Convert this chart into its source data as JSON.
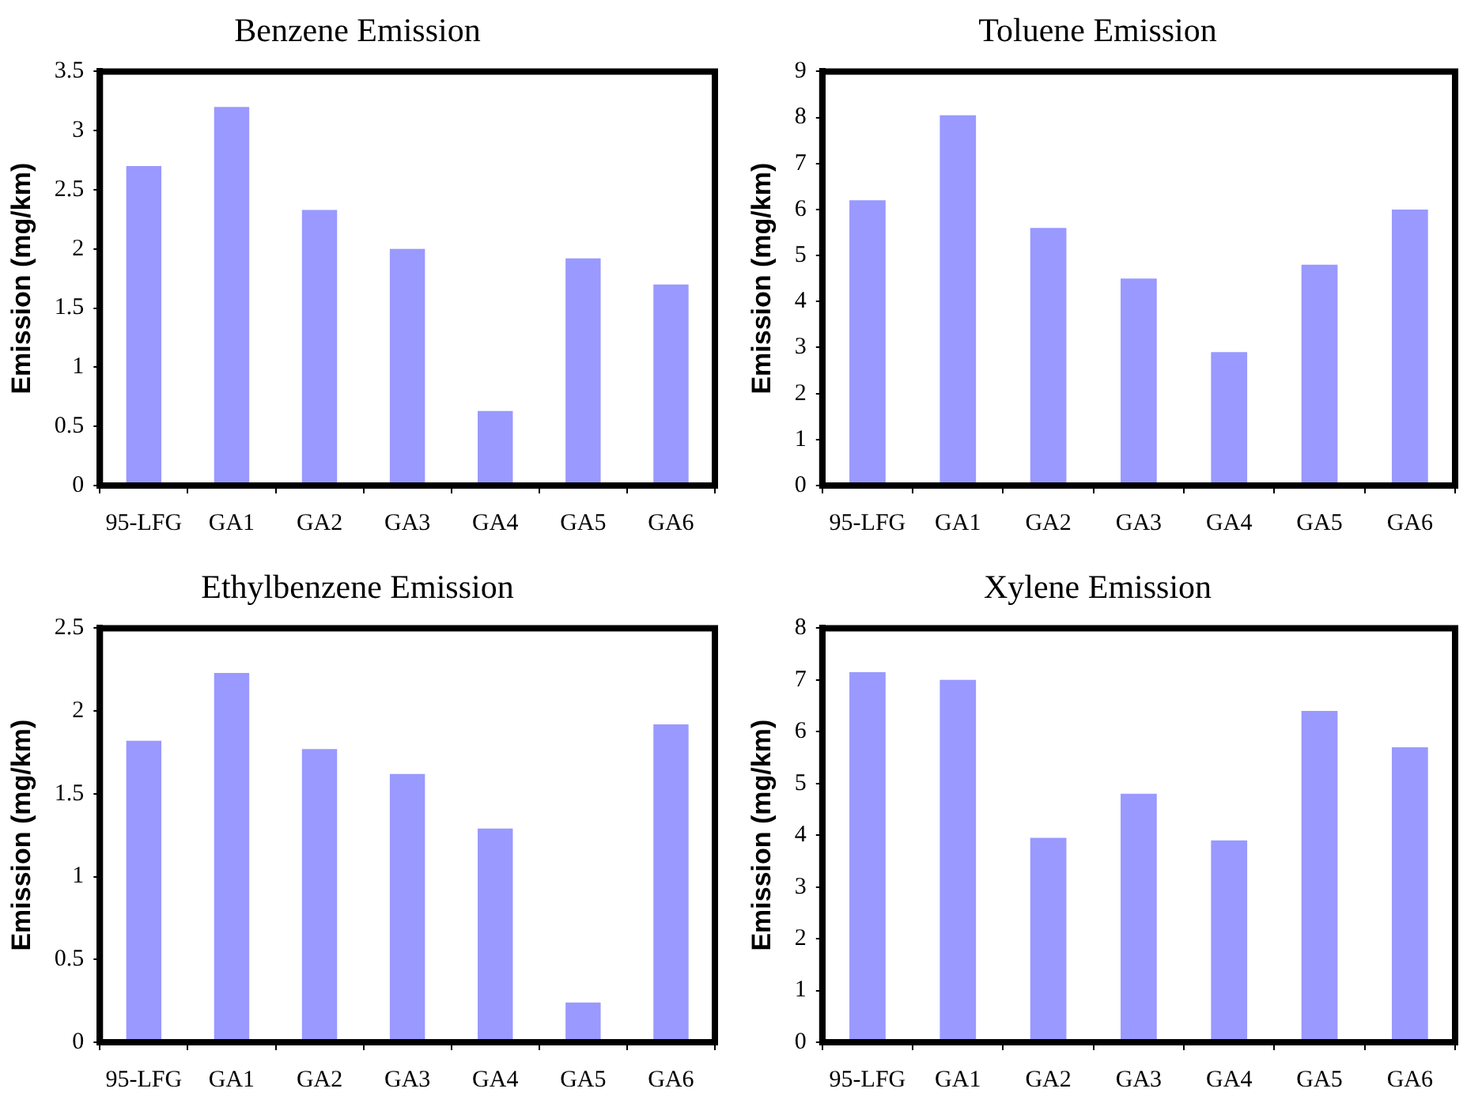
{
  "chart_data": [
    {
      "type": "bar",
      "title": "Benzene Emission",
      "ylabel": "Emission (mg/km)",
      "categories": [
        "95-LFG",
        "GA1",
        "GA2",
        "GA3",
        "GA4",
        "GA5",
        "GA6"
      ],
      "values": [
        2.7,
        3.2,
        2.33,
        2.0,
        0.63,
        1.92,
        1.7
      ],
      "color": "#9999ff",
      "ylim": [
        0,
        3.5
      ],
      "yticks": [
        0,
        0.5,
        1,
        1.5,
        2,
        2.5,
        3,
        3.5
      ],
      "grid": false,
      "legend": false
    },
    {
      "type": "bar",
      "title": "Toluene Emission",
      "ylabel": "Emission (mg/km)",
      "categories": [
        "95-LFG",
        "GA1",
        "GA2",
        "GA3",
        "GA4",
        "GA5",
        "GA6"
      ],
      "values": [
        6.2,
        8.05,
        5.6,
        4.5,
        2.9,
        4.8,
        6.0
      ],
      "color": "#9999ff",
      "ylim": [
        0,
        9
      ],
      "yticks": [
        0,
        1,
        2,
        3,
        4,
        5,
        6,
        7,
        8,
        9
      ],
      "grid": false,
      "legend": false
    },
    {
      "type": "bar",
      "title": "Ethylbenzene Emission",
      "ylabel": "Emission (mg/km)",
      "categories": [
        "95-LFG",
        "GA1",
        "GA2",
        "GA3",
        "GA4",
        "GA5",
        "GA6"
      ],
      "values": [
        1.82,
        2.23,
        1.77,
        1.62,
        1.29,
        0.24,
        1.92
      ],
      "color": "#9999ff",
      "ylim": [
        0,
        2.5
      ],
      "yticks": [
        0,
        0.5,
        1,
        1.5,
        2,
        2.5
      ],
      "grid": false,
      "legend": false
    },
    {
      "type": "bar",
      "title": "Xylene Emission",
      "ylabel": "Emission (mg/km)",
      "categories": [
        "95-LFG",
        "GA1",
        "GA2",
        "GA3",
        "GA4",
        "GA5",
        "GA6"
      ],
      "values": [
        7.15,
        7.0,
        3.95,
        4.8,
        3.9,
        6.4,
        5.7
      ],
      "color": "#9999ff",
      "ylim": [
        0,
        8
      ],
      "yticks": [
        0,
        1,
        2,
        3,
        4,
        5,
        6,
        7,
        8
      ],
      "grid": false,
      "legend": false
    }
  ]
}
